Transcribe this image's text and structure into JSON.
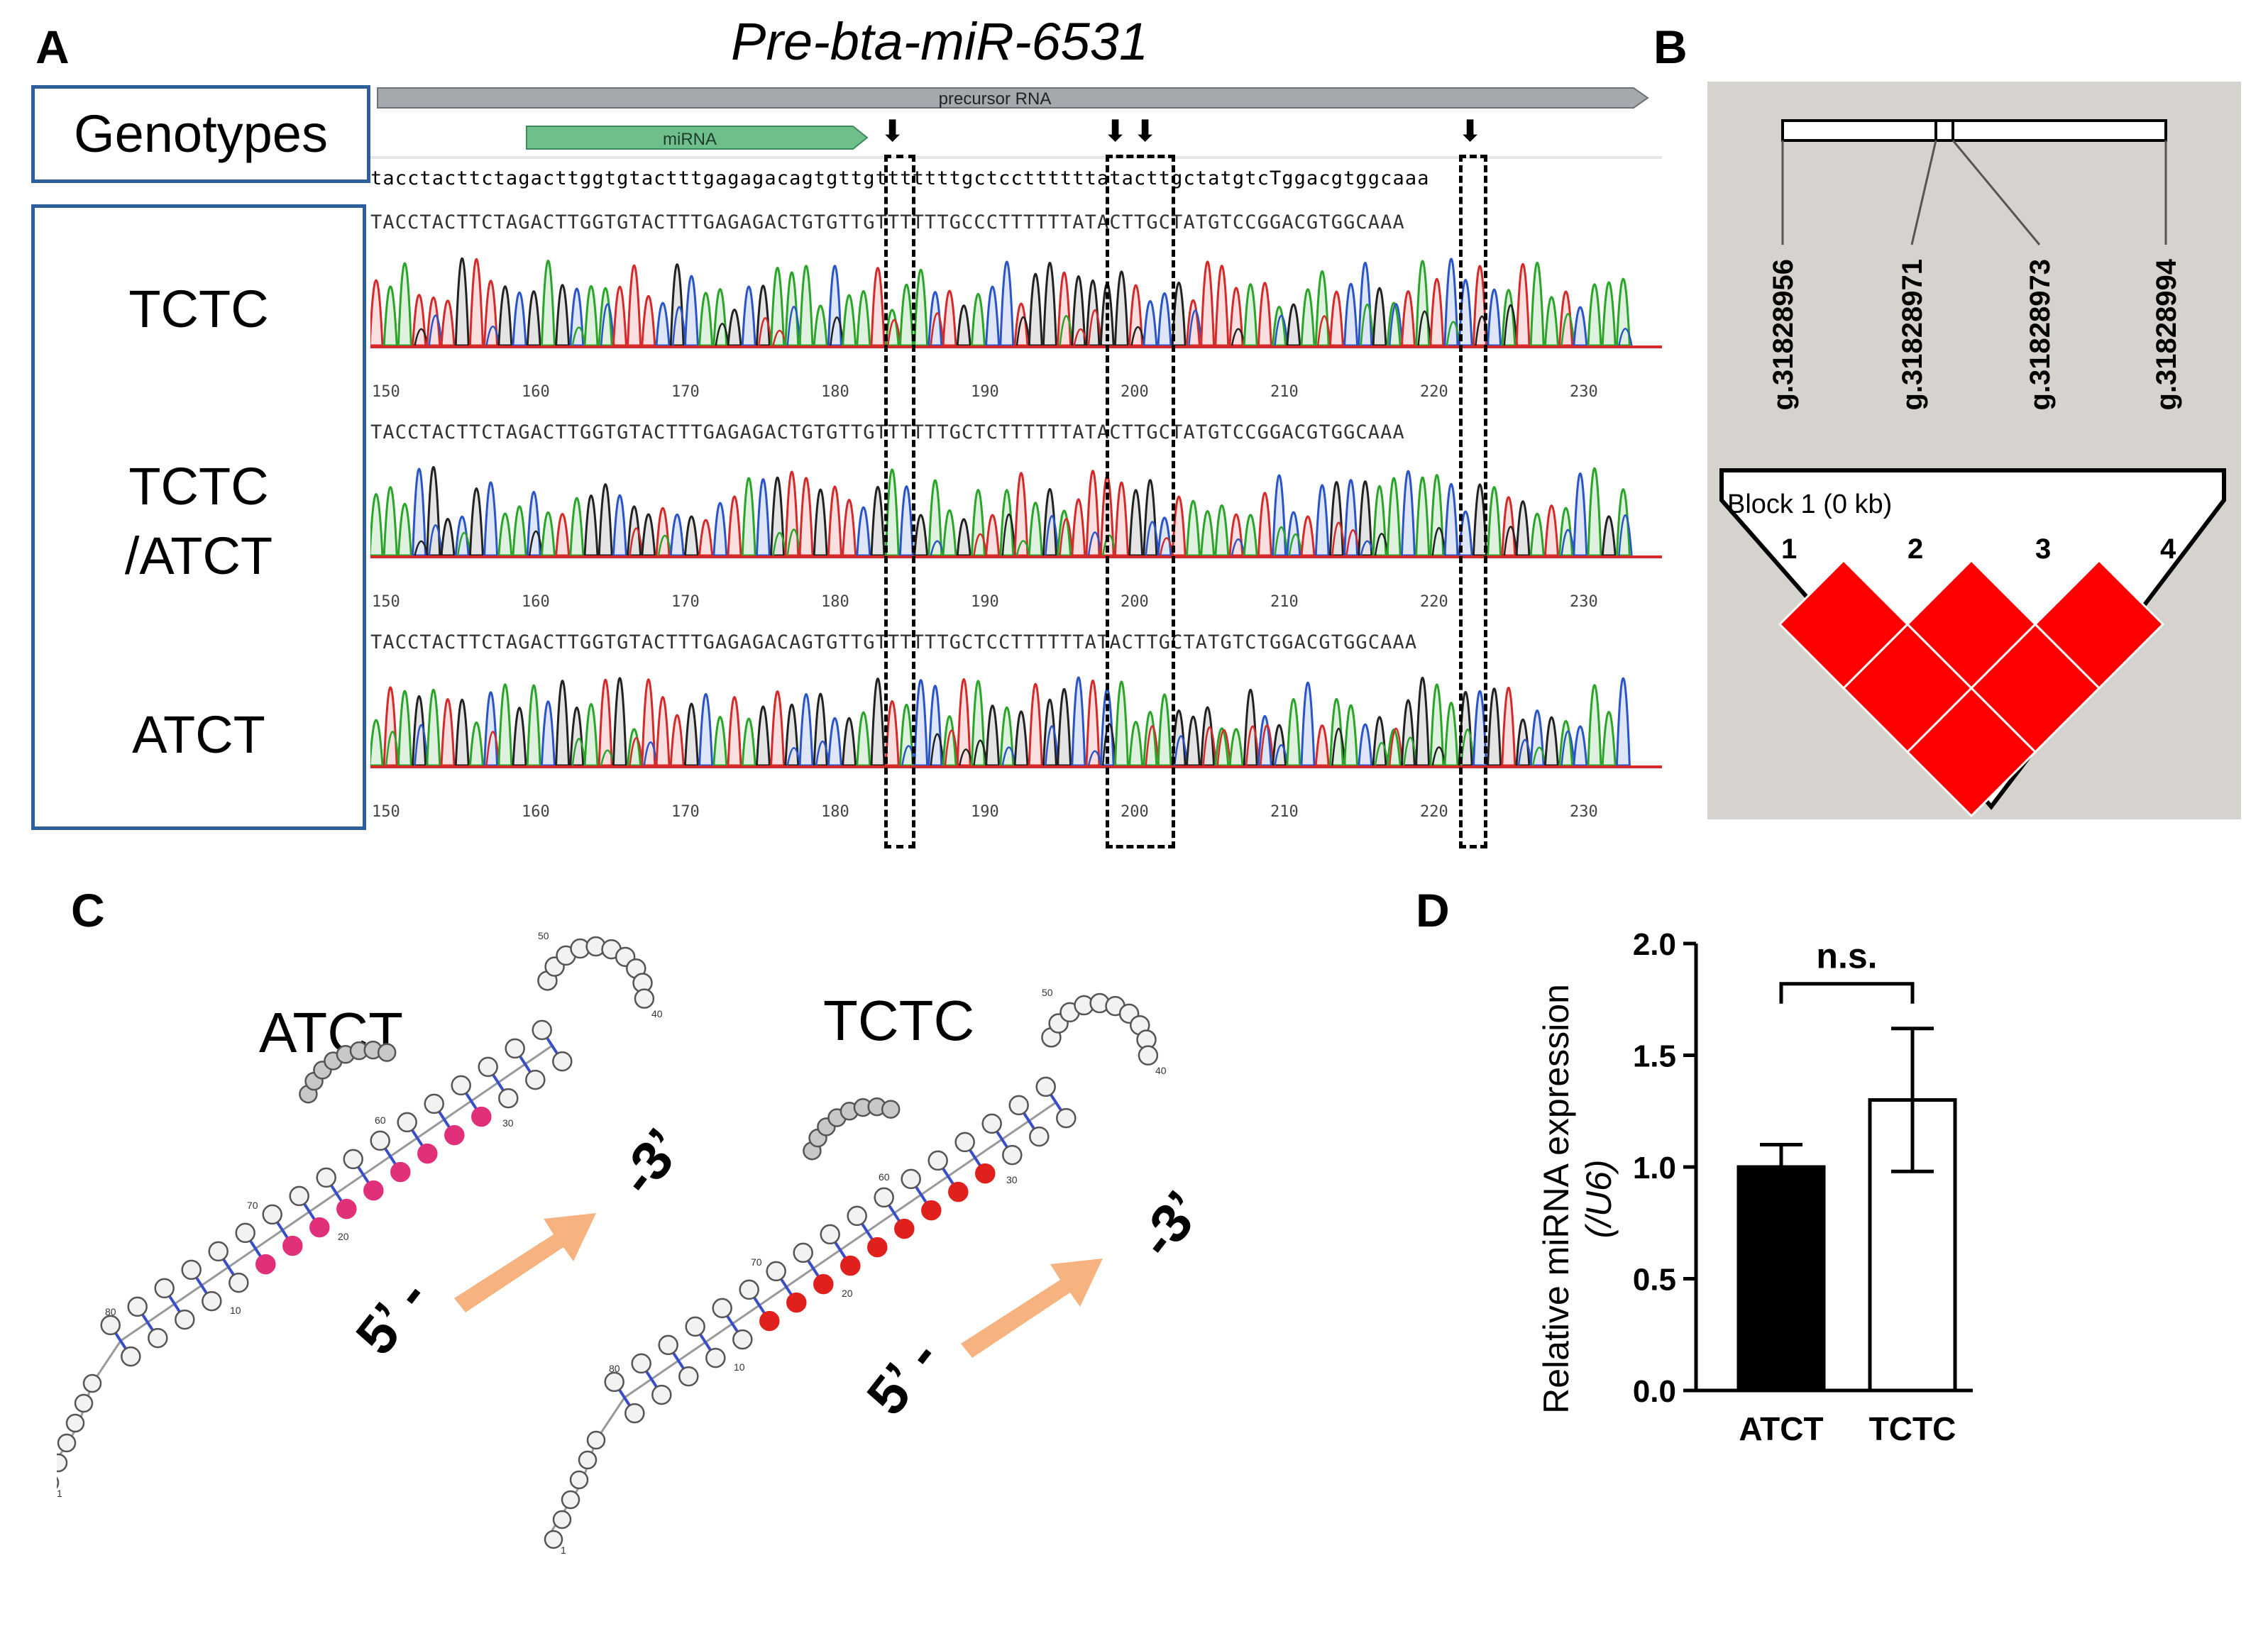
{
  "panels": {
    "a": "A",
    "b": "B",
    "c": "C",
    "d": "D"
  },
  "panel_a": {
    "title": "Pre-bta-miR-6531",
    "genotypes_header": "Genotypes",
    "genotype_1": "TCTC",
    "genotype_2_line1": "TCTC",
    "genotype_2_line2": "/ATCT",
    "genotype_3": "ATCT",
    "precursor_label": "precursor RNA",
    "mirna_label": "miRNA",
    "reference_seq": "tacctacttctagacttggtgtactttgagagacagtgttgtttttttgctccttttttatacttgctatgtcTggacgtggcaaa",
    "seq_row_1": "TACCTACTTCTAGACTTGGTGTACTTTGAGAGACTGTGTTGTTTTTTGCCCTTTTTTATACTTGCTATGTCCGGACGTGGCAAA",
    "seq_row_2": "TACCTACTTCTAGACTTGGTGTACTTTGAGAGACTGTGTTGTTTTTTGCTCTTTTTTATACTTGCTATGTCCGGACGTGGCAAA",
    "seq_row_3": "TACCTACTTCTAGACTTGGTGTACTTTGAGAGACAGTGTTGTTTTTTGCTCCTTTTTTATACTTGCTATGTCTGGACGTGGCAAA",
    "ticks": [
      "150",
      "160",
      "170",
      "180",
      "190",
      "200",
      "210",
      "220",
      "230"
    ],
    "arrow_glyph": "⬇"
  },
  "panel_b": {
    "snps": [
      "g.31828956",
      "g.31828971",
      "g.31828973",
      "g.31828994"
    ],
    "block_label": "Block 1 (0 kb)",
    "indices": [
      "1",
      "2",
      "3",
      "4"
    ],
    "ld_color": "#ff0000",
    "background": "#d6d3cf"
  },
  "panel_c": {
    "label_left": "ATCT",
    "label_right": "TCTC",
    "five_prime": "5’ -",
    "three_prime": "-3’",
    "arrow_color": "#f6b27f",
    "mature_color_left": "#e0307a",
    "mature_color_right": "#e0201c",
    "pos_labels": [
      "10",
      "20",
      "30",
      "40",
      "50",
      "60",
      "70",
      "80",
      "1"
    ]
  },
  "chart_data": {
    "type": "bar",
    "categories": [
      "ATCT",
      "TCTC"
    ],
    "values": [
      1.0,
      1.3
    ],
    "errors": [
      0.1,
      0.32
    ],
    "bar_colors": [
      "#000000",
      "#ffffff"
    ],
    "ylim": [
      0.0,
      2.0
    ],
    "yticks": [
      "0.0",
      "0.5",
      "1.0",
      "1.5",
      "2.0"
    ],
    "ylabel_line1": "Relative miRNA expression",
    "ylabel_line2": "(/U6)",
    "significance": "n.s."
  }
}
